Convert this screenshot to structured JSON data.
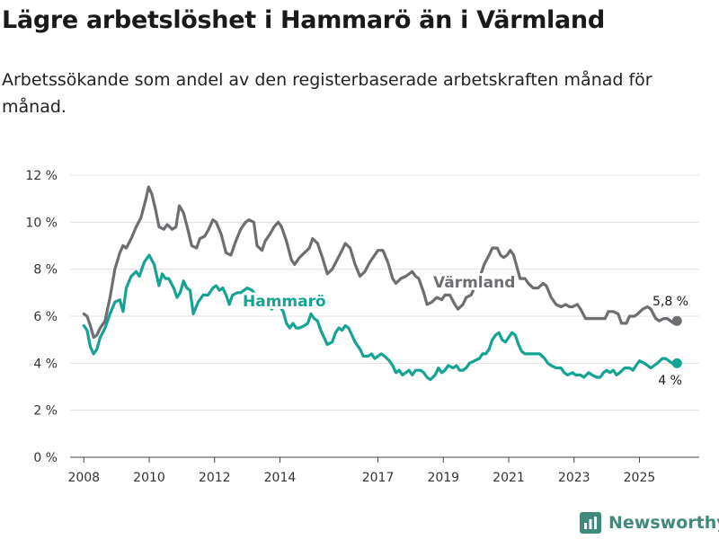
{
  "title": "Lägre arbetslöshet i Hammarö än i Värmland",
  "subtitle": "Arbetssökande som andel av den registerbaserade arbetskraften månad för månad.",
  "brand": "Newsworthy",
  "colors": {
    "hammaro": "#14a394",
    "varmland": "#6e6e72",
    "axis": "#999999",
    "grid": "#e0e0e0"
  },
  "chart_data": {
    "type": "line",
    "title": "Lägre arbetslöshet i Hammarö än i Värmland",
    "xlabel": "",
    "ylabel": "",
    "xlim": [
      2007.58,
      2026.83
    ],
    "ylim": [
      0,
      12
    ],
    "y_ticks": [
      0,
      2,
      4,
      6,
      8,
      10,
      12
    ],
    "y_tick_labels": [
      "0 %",
      "2 %",
      "4 %",
      "6 %",
      "8 %",
      "10 %",
      "12 %"
    ],
    "x_ticks": [
      2008,
      2010,
      2012,
      2014,
      2017,
      2019,
      2021,
      2023,
      2025
    ],
    "x_tick_labels": [
      "2008",
      "2010",
      "2012",
      "2014",
      "2017",
      "2019",
      "2021",
      "2023",
      "2025"
    ],
    "grid": true,
    "legend": "inline labels",
    "series": [
      {
        "name": "Värmland",
        "label": "Värmland",
        "end_label": "5,8 %",
        "end_value": 5.8,
        "points": [
          [
            2008.0,
            6.1
          ],
          [
            2008.1,
            6.0
          ],
          [
            2008.2,
            5.6
          ],
          [
            2008.3,
            5.1
          ],
          [
            2008.4,
            5.2
          ],
          [
            2008.5,
            5.5
          ],
          [
            2008.65,
            5.8
          ],
          [
            2008.8,
            6.8
          ],
          [
            2008.95,
            8.0
          ],
          [
            2009.1,
            8.7
          ],
          [
            2009.2,
            9.0
          ],
          [
            2009.3,
            8.9
          ],
          [
            2009.45,
            9.3
          ],
          [
            2009.6,
            9.8
          ],
          [
            2009.75,
            10.2
          ],
          [
            2009.9,
            11.0
          ],
          [
            2009.98,
            11.5
          ],
          [
            2010.08,
            11.2
          ],
          [
            2010.2,
            10.5
          ],
          [
            2010.3,
            9.8
          ],
          [
            2010.45,
            9.7
          ],
          [
            2010.55,
            9.9
          ],
          [
            2010.7,
            9.7
          ],
          [
            2010.82,
            9.8
          ],
          [
            2010.92,
            10.7
          ],
          [
            2011.05,
            10.4
          ],
          [
            2011.2,
            9.6
          ],
          [
            2011.3,
            9.0
          ],
          [
            2011.45,
            8.9
          ],
          [
            2011.55,
            9.3
          ],
          [
            2011.7,
            9.4
          ],
          [
            2011.82,
            9.7
          ],
          [
            2011.95,
            10.1
          ],
          [
            2012.05,
            10.0
          ],
          [
            2012.2,
            9.5
          ],
          [
            2012.35,
            8.7
          ],
          [
            2012.5,
            8.6
          ],
          [
            2012.65,
            9.2
          ],
          [
            2012.8,
            9.7
          ],
          [
            2012.95,
            10.0
          ],
          [
            2013.05,
            10.1
          ],
          [
            2013.2,
            10.0
          ],
          [
            2013.3,
            9.0
          ],
          [
            2013.45,
            8.8
          ],
          [
            2013.55,
            9.2
          ],
          [
            2013.7,
            9.5
          ],
          [
            2013.82,
            9.8
          ],
          [
            2013.95,
            10.0
          ],
          [
            2014.05,
            9.8
          ],
          [
            2014.2,
            9.2
          ],
          [
            2014.35,
            8.4
          ],
          [
            2014.45,
            8.2
          ],
          [
            2014.6,
            8.5
          ],
          [
            2014.75,
            8.7
          ],
          [
            2014.9,
            8.9
          ],
          [
            2015.0,
            9.3
          ],
          [
            2015.15,
            9.1
          ],
          [
            2015.3,
            8.5
          ],
          [
            2015.45,
            7.8
          ],
          [
            2015.6,
            8.0
          ],
          [
            2015.75,
            8.4
          ],
          [
            2015.9,
            8.8
          ],
          [
            2016.0,
            9.1
          ],
          [
            2016.15,
            8.9
          ],
          [
            2016.3,
            8.2
          ],
          [
            2016.45,
            7.7
          ],
          [
            2016.6,
            7.9
          ],
          [
            2016.75,
            8.3
          ],
          [
            2016.9,
            8.6
          ],
          [
            2017.0,
            8.8
          ],
          [
            2017.15,
            8.8
          ],
          [
            2017.3,
            8.3
          ],
          [
            2017.45,
            7.6
          ],
          [
            2017.55,
            7.4
          ],
          [
            2017.7,
            7.6
          ],
          [
            2017.85,
            7.7
          ],
          [
            2017.95,
            7.8
          ],
          [
            2018.05,
            7.9
          ],
          [
            2018.15,
            7.7
          ],
          [
            2018.25,
            7.6
          ],
          [
            2018.4,
            7.0
          ],
          [
            2018.5,
            6.5
          ],
          [
            2018.65,
            6.6
          ],
          [
            2018.8,
            6.8
          ],
          [
            2018.95,
            6.7
          ],
          [
            2019.05,
            6.9
          ],
          [
            2019.2,
            6.9
          ],
          [
            2019.35,
            6.5
          ],
          [
            2019.45,
            6.3
          ],
          [
            2019.6,
            6.5
          ],
          [
            2019.7,
            6.8
          ],
          [
            2019.85,
            6.9
          ],
          [
            2019.95,
            7.2
          ],
          [
            2020.1,
            7.6
          ],
          [
            2020.25,
            8.2
          ],
          [
            2020.4,
            8.6
          ],
          [
            2020.5,
            8.9
          ],
          [
            2020.65,
            8.9
          ],
          [
            2020.75,
            8.6
          ],
          [
            2020.85,
            8.5
          ],
          [
            2020.95,
            8.6
          ],
          [
            2021.05,
            8.8
          ],
          [
            2021.15,
            8.6
          ],
          [
            2021.25,
            8.1
          ],
          [
            2021.35,
            7.6
          ],
          [
            2021.5,
            7.6
          ],
          [
            2021.6,
            7.4
          ],
          [
            2021.75,
            7.2
          ],
          [
            2021.9,
            7.2
          ],
          [
            2022.05,
            7.4
          ],
          [
            2022.15,
            7.3
          ],
          [
            2022.3,
            6.8
          ],
          [
            2022.45,
            6.5
          ],
          [
            2022.6,
            6.4
          ],
          [
            2022.75,
            6.5
          ],
          [
            2022.85,
            6.4
          ],
          [
            2022.95,
            6.4
          ],
          [
            2023.1,
            6.5
          ],
          [
            2023.2,
            6.3
          ],
          [
            2023.35,
            5.9
          ],
          [
            2023.45,
            5.9
          ],
          [
            2023.6,
            5.9
          ],
          [
            2023.75,
            5.9
          ],
          [
            2023.95,
            5.9
          ],
          [
            2024.05,
            6.2
          ],
          [
            2024.2,
            6.2
          ],
          [
            2024.35,
            6.1
          ],
          [
            2024.45,
            5.7
          ],
          [
            2024.6,
            5.7
          ],
          [
            2024.7,
            6.0
          ],
          [
            2024.85,
            6.0
          ],
          [
            2024.95,
            6.1
          ],
          [
            2025.1,
            6.3
          ],
          [
            2025.25,
            6.4
          ],
          [
            2025.35,
            6.3
          ],
          [
            2025.5,
            5.9
          ],
          [
            2025.6,
            5.8
          ],
          [
            2025.75,
            5.9
          ],
          [
            2025.85,
            5.9
          ],
          [
            2025.95,
            5.8
          ],
          [
            2026.05,
            5.7
          ],
          [
            2026.15,
            5.8
          ]
        ]
      },
      {
        "name": "Hammarö",
        "label": "Hammarö",
        "end_label": "4 %",
        "end_value": 4.0,
        "points": [
          [
            2008.0,
            5.6
          ],
          [
            2008.1,
            5.4
          ],
          [
            2008.2,
            4.7
          ],
          [
            2008.3,
            4.4
          ],
          [
            2008.4,
            4.6
          ],
          [
            2008.5,
            5.1
          ],
          [
            2008.65,
            5.5
          ],
          [
            2008.8,
            6.1
          ],
          [
            2008.95,
            6.6
          ],
          [
            2009.1,
            6.7
          ],
          [
            2009.2,
            6.2
          ],
          [
            2009.3,
            7.2
          ],
          [
            2009.45,
            7.7
          ],
          [
            2009.6,
            7.9
          ],
          [
            2009.7,
            7.7
          ],
          [
            2009.85,
            8.3
          ],
          [
            2010.0,
            8.6
          ],
          [
            2010.15,
            8.2
          ],
          [
            2010.3,
            7.3
          ],
          [
            2010.4,
            7.8
          ],
          [
            2010.5,
            7.6
          ],
          [
            2010.6,
            7.6
          ],
          [
            2010.75,
            7.2
          ],
          [
            2010.85,
            6.8
          ],
          [
            2010.95,
            7.0
          ],
          [
            2011.05,
            7.5
          ],
          [
            2011.15,
            7.2
          ],
          [
            2011.25,
            7.1
          ],
          [
            2011.35,
            6.1
          ],
          [
            2011.5,
            6.6
          ],
          [
            2011.65,
            6.9
          ],
          [
            2011.8,
            6.9
          ],
          [
            2011.95,
            7.2
          ],
          [
            2012.05,
            7.3
          ],
          [
            2012.15,
            7.1
          ],
          [
            2012.25,
            7.2
          ],
          [
            2012.35,
            6.9
          ],
          [
            2012.45,
            6.5
          ],
          [
            2012.55,
            6.9
          ],
          [
            2012.7,
            7.0
          ],
          [
            2012.8,
            7.0
          ],
          [
            2012.9,
            7.1
          ],
          [
            2013.0,
            7.2
          ],
          [
            2013.15,
            7.1
          ],
          [
            2013.3,
            6.8
          ],
          [
            2013.45,
            6.6
          ],
          [
            2013.6,
            6.5
          ],
          [
            2013.75,
            6.3
          ],
          [
            2013.9,
            6.5
          ],
          [
            2014.0,
            6.4
          ],
          [
            2014.1,
            6.2
          ],
          [
            2014.2,
            5.7
          ],
          [
            2014.3,
            5.5
          ],
          [
            2014.4,
            5.7
          ],
          [
            2014.5,
            5.5
          ],
          [
            2014.6,
            5.5
          ],
          [
            2014.75,
            5.6
          ],
          [
            2014.85,
            5.7
          ],
          [
            2014.95,
            6.1
          ],
          [
            2015.05,
            5.9
          ],
          [
            2015.15,
            5.8
          ],
          [
            2015.25,
            5.4
          ],
          [
            2015.35,
            5.1
          ],
          [
            2015.45,
            4.8
          ],
          [
            2015.6,
            4.9
          ],
          [
            2015.7,
            5.3
          ],
          [
            2015.8,
            5.5
          ],
          [
            2015.9,
            5.4
          ],
          [
            2016.0,
            5.6
          ],
          [
            2016.1,
            5.5
          ],
          [
            2016.2,
            5.2
          ],
          [
            2016.3,
            4.9
          ],
          [
            2016.45,
            4.6
          ],
          [
            2016.55,
            4.3
          ],
          [
            2016.7,
            4.3
          ],
          [
            2016.8,
            4.4
          ],
          [
            2016.9,
            4.2
          ],
          [
            2017.0,
            4.3
          ],
          [
            2017.1,
            4.4
          ],
          [
            2017.2,
            4.3
          ],
          [
            2017.35,
            4.1
          ],
          [
            2017.45,
            3.9
          ],
          [
            2017.55,
            3.6
          ],
          [
            2017.65,
            3.7
          ],
          [
            2017.75,
            3.5
          ],
          [
            2017.85,
            3.6
          ],
          [
            2017.95,
            3.7
          ],
          [
            2018.05,
            3.5
          ],
          [
            2018.15,
            3.7
          ],
          [
            2018.3,
            3.7
          ],
          [
            2018.4,
            3.6
          ],
          [
            2018.5,
            3.4
          ],
          [
            2018.6,
            3.3
          ],
          [
            2018.75,
            3.5
          ],
          [
            2018.85,
            3.8
          ],
          [
            2018.95,
            3.6
          ],
          [
            2019.05,
            3.7
          ],
          [
            2019.15,
            3.9
          ],
          [
            2019.3,
            3.8
          ],
          [
            2019.4,
            3.9
          ],
          [
            2019.5,
            3.7
          ],
          [
            2019.6,
            3.7
          ],
          [
            2019.7,
            3.8
          ],
          [
            2019.8,
            4.0
          ],
          [
            2019.95,
            4.1
          ],
          [
            2020.1,
            4.2
          ],
          [
            2020.2,
            4.4
          ],
          [
            2020.3,
            4.4
          ],
          [
            2020.4,
            4.6
          ],
          [
            2020.5,
            5.0
          ],
          [
            2020.6,
            5.2
          ],
          [
            2020.7,
            5.3
          ],
          [
            2020.8,
            5.0
          ],
          [
            2020.9,
            4.9
          ],
          [
            2021.0,
            5.1
          ],
          [
            2021.1,
            5.3
          ],
          [
            2021.2,
            5.2
          ],
          [
            2021.3,
            4.8
          ],
          [
            2021.4,
            4.5
          ],
          [
            2021.5,
            4.4
          ],
          [
            2021.6,
            4.4
          ],
          [
            2021.7,
            4.4
          ],
          [
            2021.85,
            4.4
          ],
          [
            2021.95,
            4.4
          ],
          [
            2022.1,
            4.2
          ],
          [
            2022.2,
            4.0
          ],
          [
            2022.3,
            3.9
          ],
          [
            2022.45,
            3.8
          ],
          [
            2022.6,
            3.8
          ],
          [
            2022.7,
            3.6
          ],
          [
            2022.8,
            3.5
          ],
          [
            2022.95,
            3.6
          ],
          [
            2023.05,
            3.5
          ],
          [
            2023.2,
            3.5
          ],
          [
            2023.3,
            3.4
          ],
          [
            2023.45,
            3.6
          ],
          [
            2023.55,
            3.5
          ],
          [
            2023.7,
            3.4
          ],
          [
            2023.8,
            3.4
          ],
          [
            2023.9,
            3.6
          ],
          [
            2024.0,
            3.7
          ],
          [
            2024.1,
            3.6
          ],
          [
            2024.2,
            3.7
          ],
          [
            2024.3,
            3.5
          ],
          [
            2024.4,
            3.6
          ],
          [
            2024.55,
            3.8
          ],
          [
            2024.7,
            3.8
          ],
          [
            2024.8,
            3.7
          ],
          [
            2024.9,
            3.9
          ],
          [
            2025.0,
            4.1
          ],
          [
            2025.15,
            4.0
          ],
          [
            2025.25,
            3.9
          ],
          [
            2025.35,
            3.8
          ],
          [
            2025.45,
            3.9
          ],
          [
            2025.55,
            4.0
          ],
          [
            2025.7,
            4.2
          ],
          [
            2025.8,
            4.2
          ],
          [
            2025.9,
            4.1
          ],
          [
            2026.0,
            4.0
          ],
          [
            2026.15,
            4.0
          ]
        ]
      }
    ]
  }
}
